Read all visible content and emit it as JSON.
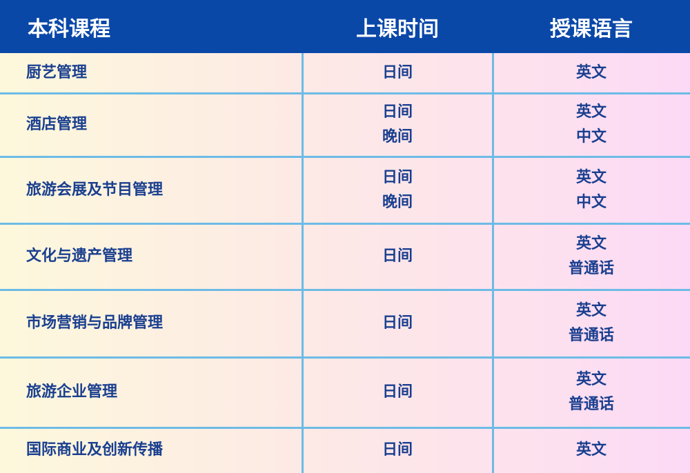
{
  "table": {
    "header": [
      "本科课程",
      "上课时间",
      "授课语言"
    ],
    "rows": [
      [
        "厨艺管理",
        [
          "日间"
        ],
        [
          "英文"
        ]
      ],
      [
        "酒店管理",
        [
          "日间",
          "晚间"
        ],
        [
          "英文",
          "中文"
        ]
      ],
      [
        "旅游会展及节目管理",
        [
          "日间",
          "晚间"
        ],
        [
          "英文",
          "中文"
        ]
      ],
      [
        "文化与遗产管理",
        [
          "日间"
        ],
        [
          "英文",
          "普通话"
        ]
      ],
      [
        "市场营销与品牌管理",
        [
          "日间"
        ],
        [
          "英文",
          "普通话"
        ]
      ],
      [
        "旅游企业管理",
        [
          "日间"
        ],
        [
          "英文",
          "普通话"
        ]
      ],
      [
        "国际商业及创新传播",
        [
          "日间"
        ],
        [
          "英文"
        ]
      ]
    ]
  }
}
